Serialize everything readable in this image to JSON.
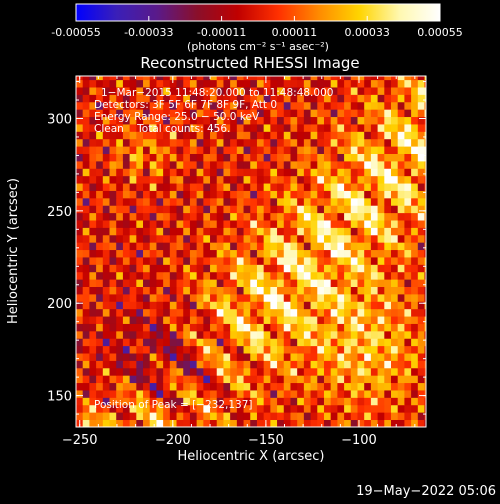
{
  "colorbar": {
    "ticks": [
      "-0.00055",
      "-0.00033",
      "-0.00011",
      "0.00011",
      "0.00033",
      "0.00055"
    ],
    "range": [
      -0.00055,
      0.00055
    ],
    "units": "(photons cm⁻² s⁻¹ asec⁻²)",
    "colors": [
      "#0000ff",
      "#3a1fb8",
      "#5a1a8a",
      "#8a0f2a",
      "#c00000",
      "#ff3000",
      "#ff8a00",
      "#ffd400",
      "#fff8b0",
      "#ffffff"
    ]
  },
  "chart_data": {
    "type": "heatmap",
    "title": "Reconstructed RHESSI Image",
    "xlabel": "Heliocentric X (arcsec)",
    "ylabel": "Heliocentric Y (arcsec)",
    "xlim": [
      -252,
      -64
    ],
    "ylim": [
      133,
      323
    ],
    "xticks": [
      -250,
      -200,
      -150,
      -100
    ],
    "xtick_labels": [
      "−250",
      "−200",
      "−150",
      "−100"
    ],
    "yticks": [
      150,
      200,
      250,
      300
    ],
    "yticks_labels": [
      "150",
      "200",
      "250",
      "300"
    ],
    "legend": "none",
    "grid": false,
    "peak": [
      -232,
      137
    ],
    "color_scale": {
      "min": -0.00055,
      "max": 0.00055
    },
    "annotations": [
      "1−Mar−2015 11:48:20.000 to 11:48:48.000",
      "Detectors: 3F 5F 6F 7F 8F 9F, Att 0",
      "Energy Range: 25.0 − 50.0 keV",
      "Clean    Total counts: 456.",
      "Position of Peak = [−232,137]"
    ]
  },
  "footer": {
    "timestamp": "19−May−2022 05:06"
  }
}
